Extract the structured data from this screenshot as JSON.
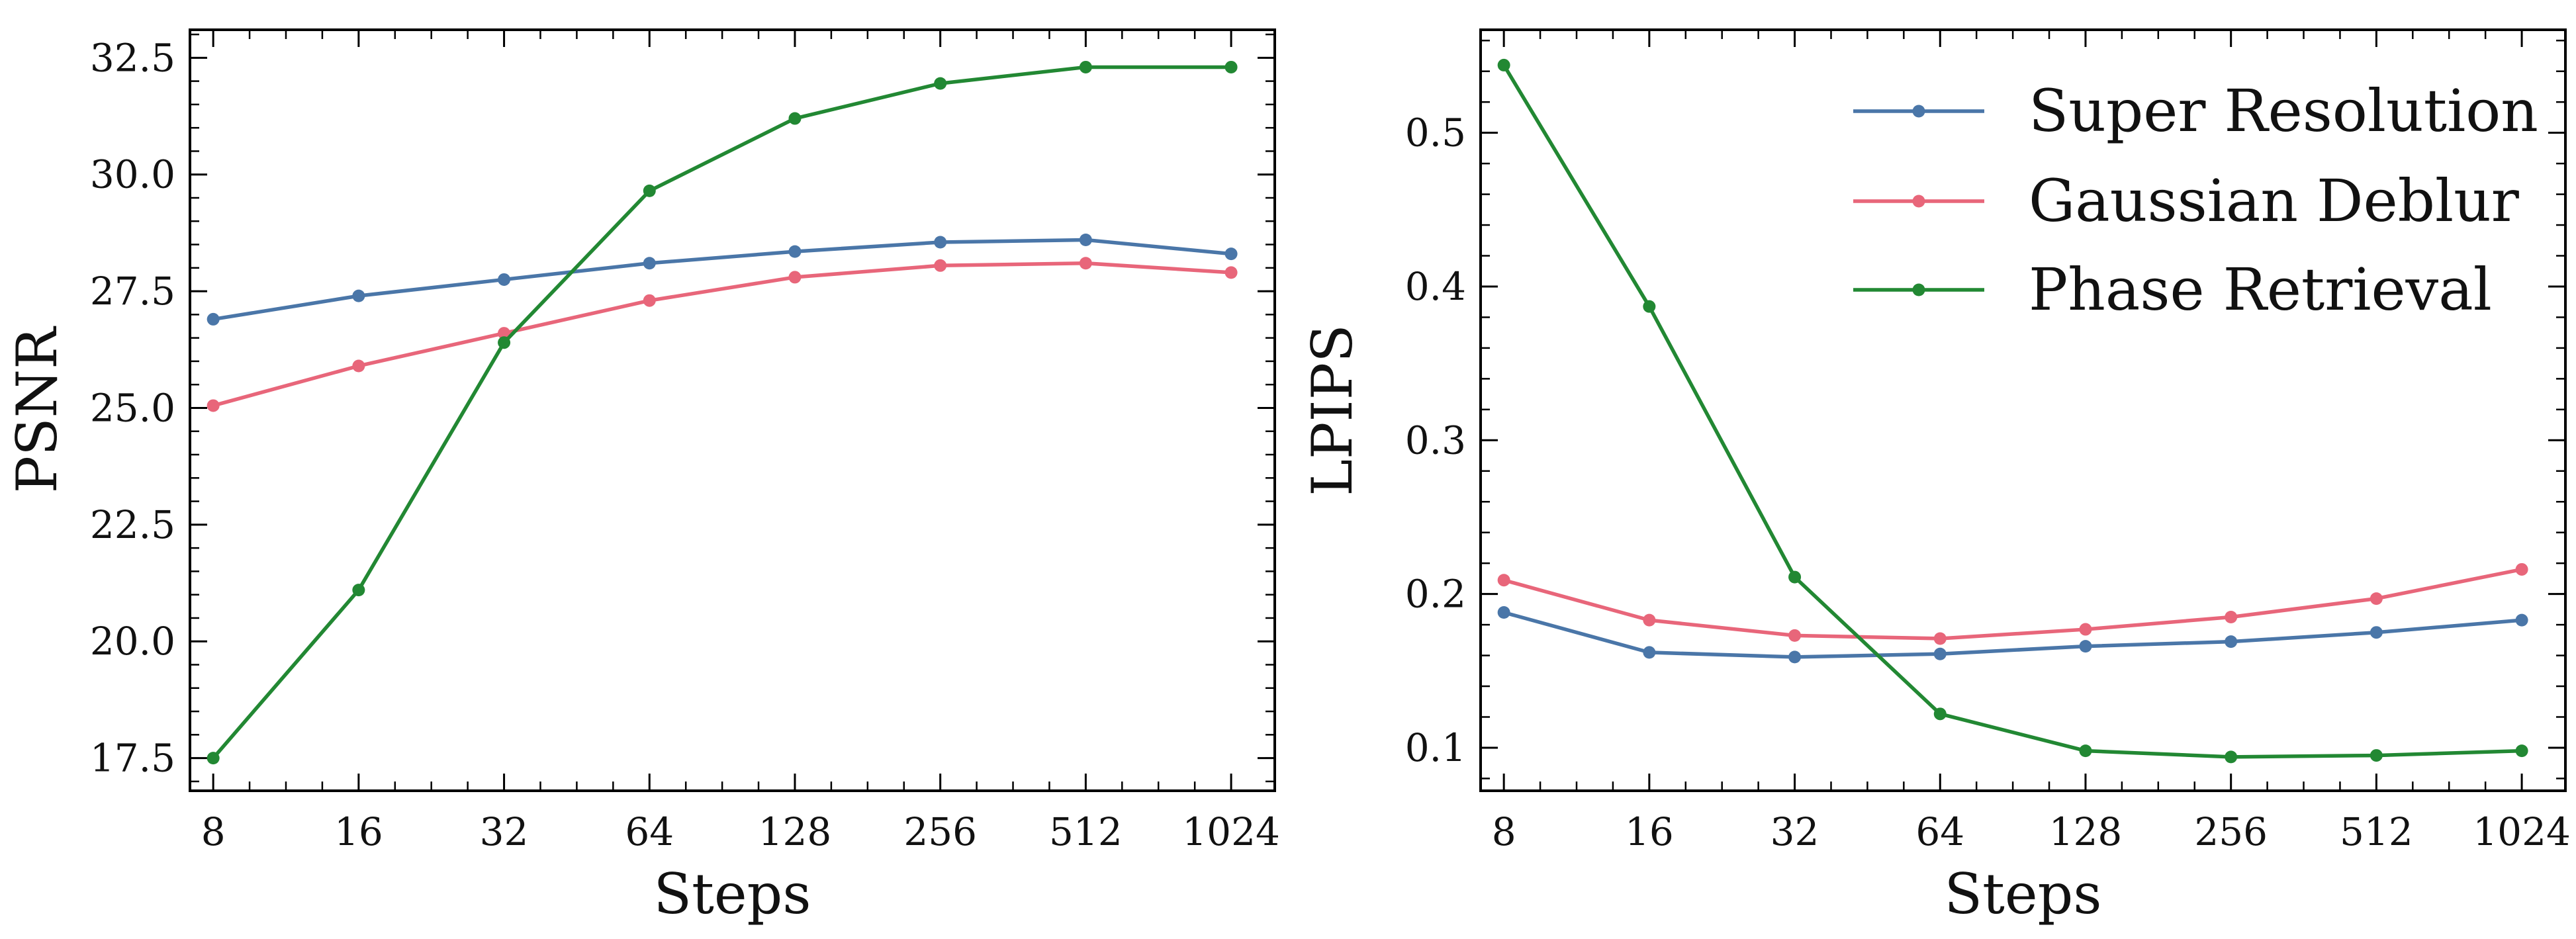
{
  "chart_data": [
    {
      "type": "line",
      "xlabel": "Steps",
      "ylabel": "PSNR",
      "x_scale": "log2",
      "categories": [
        "8",
        "16",
        "32",
        "64",
        "128",
        "256",
        "512",
        "1024"
      ],
      "x": [
        8,
        16,
        32,
        64,
        128,
        256,
        512,
        1024
      ],
      "ylim": [
        16.8,
        33.1
      ],
      "yticks": [
        17.5,
        20.0,
        22.5,
        25.0,
        27.5,
        30.0,
        32.5
      ],
      "ytick_labels": [
        "17.5",
        "20.0",
        "22.5",
        "25.0",
        "27.5",
        "30.0",
        "32.5"
      ],
      "legend": false,
      "series": [
        {
          "name": "Super Resolution",
          "color": "#4a76a8",
          "values": [
            26.9,
            27.4,
            27.75,
            28.1,
            28.35,
            28.55,
            28.6,
            28.3
          ]
        },
        {
          "name": "Gaussian Deblur",
          "color": "#e8667a",
          "values": [
            25.05,
            25.9,
            26.6,
            27.3,
            27.8,
            28.05,
            28.1,
            27.9
          ]
        },
        {
          "name": "Phase Retrieval",
          "color": "#228833",
          "values": [
            17.5,
            21.1,
            26.4,
            29.65,
            31.2,
            31.95,
            32.3,
            32.3
          ]
        }
      ]
    },
    {
      "type": "line",
      "xlabel": "Steps",
      "ylabel": "LPIPS",
      "x_scale": "log2",
      "categories": [
        "8",
        "16",
        "32",
        "64",
        "128",
        "256",
        "512",
        "1024"
      ],
      "x": [
        8,
        16,
        32,
        64,
        128,
        256,
        512,
        1024
      ],
      "ylim": [
        0.072,
        0.567
      ],
      "yticks": [
        0.1,
        0.2,
        0.3,
        0.4,
        0.5
      ],
      "ytick_labels": [
        "0.1",
        "0.2",
        "0.3",
        "0.4",
        "0.5"
      ],
      "legend": true,
      "legend_position": "top-right",
      "series": [
        {
          "name": "Super Resolution",
          "color": "#4a76a8",
          "values": [
            0.188,
            0.162,
            0.159,
            0.161,
            0.166,
            0.169,
            0.175,
            0.183
          ]
        },
        {
          "name": "Gaussian Deblur",
          "color": "#e8667a",
          "values": [
            0.209,
            0.183,
            0.173,
            0.171,
            0.177,
            0.185,
            0.197,
            0.216
          ]
        },
        {
          "name": "Phase Retrieval",
          "color": "#228833",
          "values": [
            0.544,
            0.387,
            0.211,
            0.122,
            0.098,
            0.094,
            0.095,
            0.098
          ]
        }
      ]
    }
  ]
}
